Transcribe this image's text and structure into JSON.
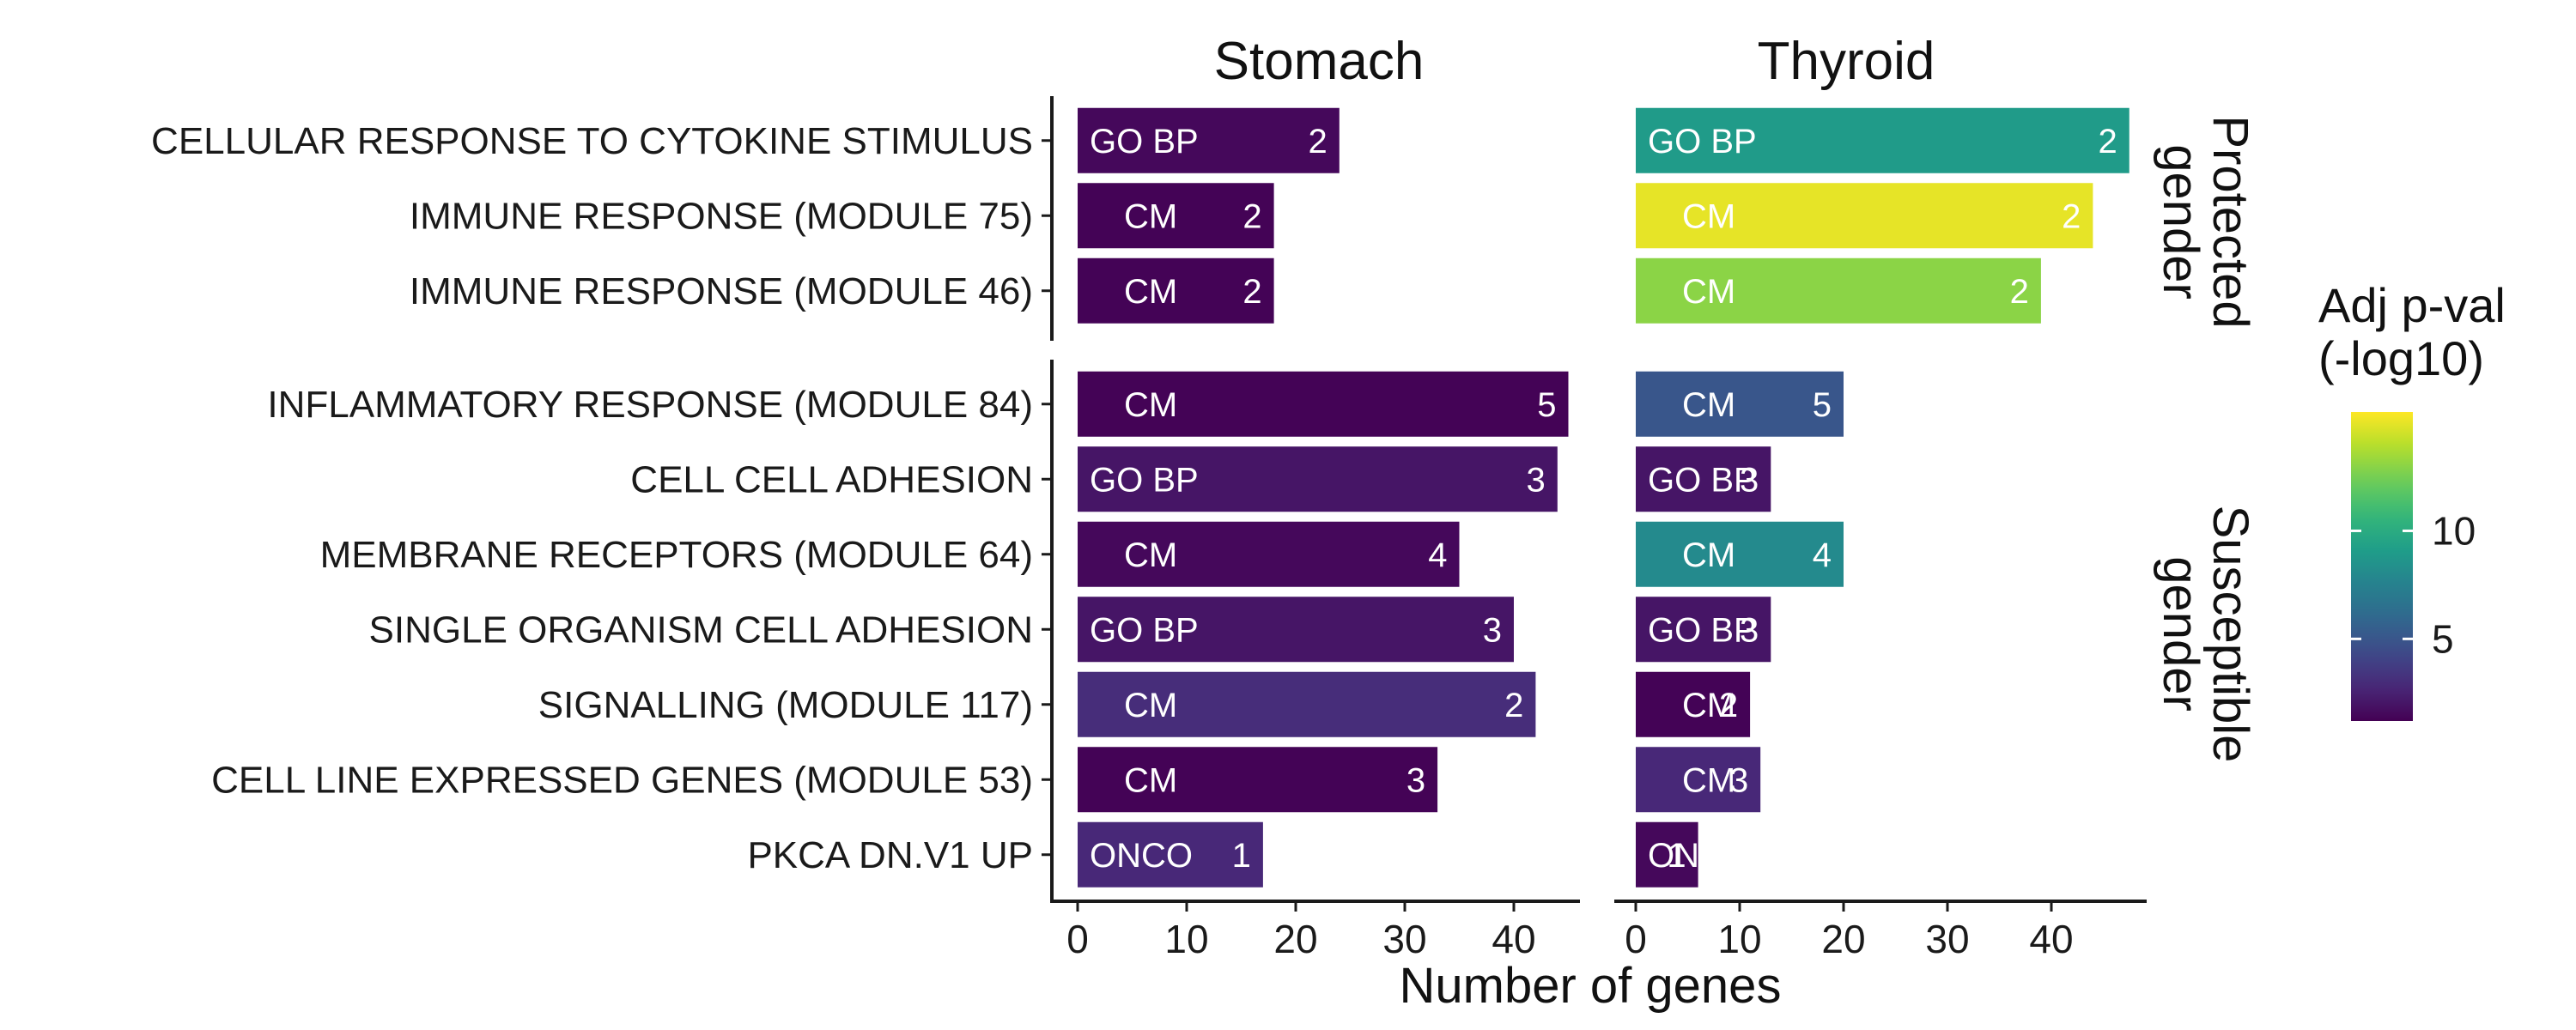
{
  "chart_data": {
    "type": "bar",
    "orientation": "horizontal",
    "xlabel": "Number of genes",
    "xlim": [
      0,
      48
    ],
    "xticks": [
      0,
      10,
      20,
      30,
      40
    ],
    "facets": [
      {
        "name": "Stomach"
      },
      {
        "name": "Thyroid"
      }
    ],
    "groups": [
      {
        "name": "Protected gender",
        "lines": [
          "Protected",
          "gender"
        ],
        "categories": [
          "CELLULAR RESPONSE TO CYTOKINE STIMULUS",
          "IMMUNE RESPONSE (MODULE 75)",
          "IMMUNE RESPONSE (MODULE 46)"
        ]
      },
      {
        "name": "Susceptible gender",
        "lines": [
          "Susceptible",
          "gender"
        ],
        "categories": [
          "INFLAMMATORY RESPONSE (MODULE 84)",
          "CELL CELL ADHESION",
          "MEMBRANE RECEPTORS (MODULE 64)",
          "SINGLE ORGANISM CELL ADHESION",
          "SIGNALLING (MODULE 117)",
          "CELL LINE EXPRESSED GENES (MODULE 53)",
          "PKCA DN.V1 UP"
        ]
      }
    ],
    "bars": [
      {
        "facet": "Stomach",
        "group": "Protected gender",
        "category": "CELLULAR RESPONSE TO CYTOKINE STIMULUS",
        "value": 24,
        "type_label": "GO BP",
        "count_label": "2",
        "pval": 1.5
      },
      {
        "facet": "Stomach",
        "group": "Protected gender",
        "category": "IMMUNE RESPONSE (MODULE 75)",
        "value": 18,
        "type_label": "CM",
        "count_label": "2",
        "pval": 1.3
      },
      {
        "facet": "Stomach",
        "group": "Protected gender",
        "category": "IMMUNE RESPONSE (MODULE 46)",
        "value": 18,
        "type_label": "CM",
        "count_label": "2",
        "pval": 1.3
      },
      {
        "facet": "Stomach",
        "group": "Susceptible gender",
        "category": "INFLAMMATORY RESPONSE (MODULE 84)",
        "value": 45,
        "type_label": "CM",
        "count_label": "5",
        "pval": 1.3
      },
      {
        "facet": "Stomach",
        "group": "Susceptible gender",
        "category": "CELL CELL ADHESION",
        "value": 44,
        "type_label": "GO BP",
        "count_label": "3",
        "pval": 2.0
      },
      {
        "facet": "Stomach",
        "group": "Susceptible gender",
        "category": "MEMBRANE RECEPTORS (MODULE 64)",
        "value": 35,
        "type_label": "CM",
        "count_label": "4",
        "pval": 1.5
      },
      {
        "facet": "Stomach",
        "group": "Susceptible gender",
        "category": "SINGLE ORGANISM CELL ADHESION",
        "value": 40,
        "type_label": "GO BP",
        "count_label": "3",
        "pval": 2.0
      },
      {
        "facet": "Stomach",
        "group": "Susceptible gender",
        "category": "SIGNALLING (MODULE 117)",
        "value": 42,
        "type_label": "CM",
        "count_label": "2",
        "pval": 3.0
      },
      {
        "facet": "Stomach",
        "group": "Susceptible gender",
        "category": "CELL LINE EXPRESSED GENES (MODULE 53)",
        "value": 33,
        "type_label": "CM",
        "count_label": "3",
        "pval": 1.3
      },
      {
        "facet": "Stomach",
        "group": "Susceptible gender",
        "category": "PKCA DN.V1 UP",
        "value": 17,
        "type_label": "ONCO",
        "count_label": "1",
        "pval": 2.8
      },
      {
        "facet": "Thyroid",
        "group": "Protected gender",
        "category": "CELLULAR RESPONSE TO CYTOKINE STIMULUS",
        "value": 47.5,
        "type_label": "GO BP",
        "count_label": "2",
        "pval": 9.0
      },
      {
        "facet": "Thyroid",
        "group": "Protected gender",
        "category": "IMMUNE RESPONSE (MODULE 75)",
        "value": 44,
        "type_label": "CM",
        "count_label": "2",
        "pval": 15.0
      },
      {
        "facet": "Thyroid",
        "group": "Protected gender",
        "category": "IMMUNE RESPONSE (MODULE 46)",
        "value": 39,
        "type_label": "CM",
        "count_label": "2",
        "pval": 13.0
      },
      {
        "facet": "Thyroid",
        "group": "Susceptible gender",
        "category": "INFLAMMATORY RESPONSE (MODULE 84)",
        "value": 20,
        "type_label": "CM",
        "count_label": "5",
        "pval": 5.0
      },
      {
        "facet": "Thyroid",
        "group": "Susceptible gender",
        "category": "CELL CELL ADHESION",
        "value": 13,
        "type_label": "GO BP",
        "count_label": "3",
        "pval": 2.0
      },
      {
        "facet": "Thyroid",
        "group": "Susceptible gender",
        "category": "MEMBRANE RECEPTORS (MODULE 64)",
        "value": 20,
        "type_label": "CM",
        "count_label": "4",
        "pval": 8.0
      },
      {
        "facet": "Thyroid",
        "group": "Susceptible gender",
        "category": "SINGLE ORGANISM CELL ADHESION",
        "value": 13,
        "type_label": "GO BP",
        "count_label": "3",
        "pval": 2.0
      },
      {
        "facet": "Thyroid",
        "group": "Susceptible gender",
        "category": "SIGNALLING (MODULE 117)",
        "value": 11,
        "type_label": "CM",
        "count_label": "2",
        "pval": 1.3
      },
      {
        "facet": "Thyroid",
        "group": "Susceptible gender",
        "category": "CELL LINE EXPRESSED GENES (MODULE 53)",
        "value": 12,
        "type_label": "CM",
        "count_label": "3",
        "pval": 2.8
      },
      {
        "facet": "Thyroid",
        "group": "Susceptible gender",
        "category": "PKCA DN.V1 UP",
        "value": 6,
        "type_label": "ONCO",
        "count_label": "1",
        "pval": 1.5
      }
    ],
    "legend": {
      "title_lines": [
        "Adj p-val",
        "(-log10)"
      ],
      "ticks": [
        5,
        10
      ],
      "range": [
        1.2,
        15.5
      ],
      "colormap": "viridis",
      "placement": "right"
    }
  }
}
